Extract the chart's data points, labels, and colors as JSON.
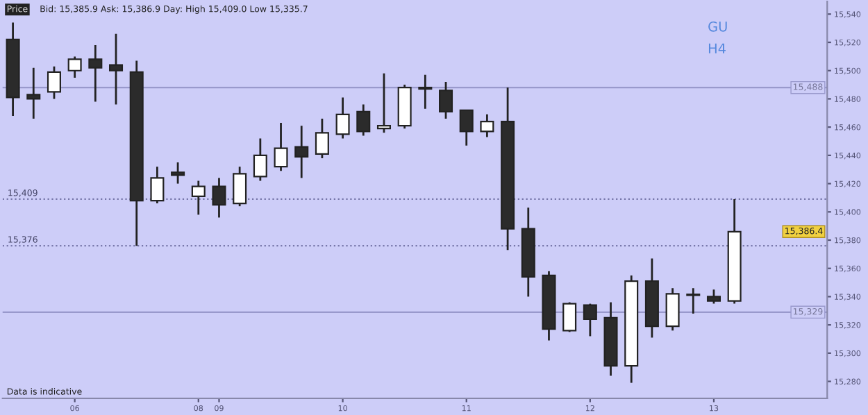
{
  "chart_data": {
    "type": "candlestick",
    "title": "GU",
    "subtitle": "H4",
    "annotations": [
      "Price",
      "Bid: 15,385.9 Ask: 15,386.9 Day: High 15,409.0 Low 15,335.7",
      "Data is indicative",
      "15,386.4"
    ],
    "categories": [
      null,
      null,
      null,
      "06",
      null,
      null,
      null,
      null,
      null,
      "08",
      "09",
      null,
      null,
      null,
      null,
      null,
      "10",
      null,
      null,
      null,
      null,
      null,
      "11",
      null,
      null,
      null,
      null,
      null,
      "12",
      null,
      null,
      null,
      null,
      null,
      "13",
      null,
      null,
      null,
      null,
      null
    ],
    "ohlc": [
      [
        15522,
        15534,
        15468,
        15481
      ],
      [
        15483,
        15502,
        15466,
        15480
      ],
      [
        15485,
        15503,
        15480,
        15499
      ],
      [
        15500,
        15510,
        15495,
        15508
      ],
      [
        15508,
        15518,
        15478,
        15502
      ],
      [
        15504,
        15526,
        15476,
        15500
      ],
      [
        15499,
        15507,
        15376,
        15408
      ],
      [
        15408,
        15432,
        15406,
        15424
      ],
      [
        15428,
        15435,
        15420,
        15426
      ],
      [
        15411,
        15422,
        15398,
        15418
      ],
      [
        15418,
        15424,
        15396,
        15405
      ],
      [
        15406,
        15432,
        15404,
        15427
      ],
      [
        15425,
        15452,
        15422,
        15440
      ],
      [
        15432,
        15463,
        15429,
        15445
      ],
      [
        15446,
        15461,
        15424,
        15439
      ],
      [
        15441,
        15466,
        15438,
        15456
      ],
      [
        15455,
        15481,
        15452,
        15469
      ],
      [
        15471,
        15476,
        15454,
        15457
      ],
      [
        15459,
        15498,
        15456,
        15461
      ],
      [
        15461,
        15490,
        15459,
        15488
      ],
      [
        15488,
        15497,
        15473,
        15487
      ],
      [
        15486,
        15492,
        15466,
        15471
      ],
      [
        15472,
        15472,
        15447,
        15457
      ],
      [
        15457,
        15469,
        15453,
        15464
      ],
      [
        15464,
        15488,
        15373,
        15388
      ],
      [
        15388,
        15403,
        15340,
        15354
      ],
      [
        15355,
        15358,
        15309,
        15317
      ],
      [
        15316,
        15336,
        15315,
        15335
      ],
      [
        15334,
        15335,
        15312,
        15324
      ],
      [
        15325,
        15336,
        15284,
        15291
      ],
      [
        15291,
        15355,
        15279,
        15351
      ],
      [
        15351,
        15367,
        15311,
        15319
      ],
      [
        15319,
        15346,
        15316,
        15342
      ],
      [
        15341,
        15346,
        15328,
        15341
      ],
      [
        15340,
        15345,
        15335,
        15337
      ],
      [
        15337,
        15409,
        15335,
        15386
      ],
      null,
      null,
      null,
      null
    ],
    "ylim": [
      15268,
      15549
    ],
    "yticks": [
      {
        "value": 15280,
        "label": "15,280"
      },
      {
        "value": 15300,
        "label": "15,300"
      },
      {
        "value": 15320,
        "label": "15,320"
      },
      {
        "value": 15340,
        "label": "15,340"
      },
      {
        "value": 15360,
        "label": "15,360"
      },
      {
        "value": 15380,
        "label": "15,380"
      },
      {
        "value": 15400,
        "label": "15,400"
      },
      {
        "value": 15420,
        "label": "15,420"
      },
      {
        "value": 15440,
        "label": "15,440"
      },
      {
        "value": 15460,
        "label": "15,460"
      },
      {
        "value": 15480,
        "label": "15,480"
      },
      {
        "value": 15500,
        "label": "15,500"
      },
      {
        "value": 15520,
        "label": "15,520"
      },
      {
        "value": 15540,
        "label": "15,540"
      }
    ],
    "ref_lines": [
      {
        "axis": "y",
        "value": 15409,
        "label": "15,409",
        "color": "#7777aa",
        "line_style": "dotted"
      },
      {
        "axis": "y",
        "value": 15376,
        "label": "15,376",
        "color": "#7777aa",
        "line_style": "dotted"
      },
      {
        "axis": "y",
        "value": 15488,
        "label": "15,488",
        "color": "#9999cc",
        "line_style": "solid"
      },
      {
        "axis": "y",
        "value": 15329,
        "label": "15,329",
        "color": "#9999cc",
        "line_style": "solid"
      }
    ]
  }
}
